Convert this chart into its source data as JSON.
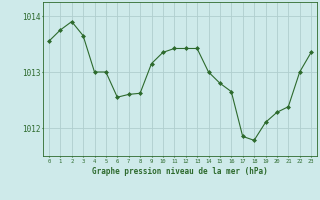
{
  "x": [
    0,
    1,
    2,
    3,
    4,
    5,
    6,
    7,
    8,
    9,
    10,
    11,
    12,
    13,
    14,
    15,
    16,
    17,
    18,
    19,
    20,
    21,
    22,
    23
  ],
  "y": [
    1013.55,
    1013.75,
    1013.9,
    1013.65,
    1013.0,
    1013.0,
    1012.55,
    1012.6,
    1012.62,
    1013.15,
    1013.35,
    1013.42,
    1013.42,
    1013.42,
    1013.0,
    1012.8,
    1012.65,
    1011.85,
    1011.78,
    1012.1,
    1012.28,
    1012.38,
    1013.0,
    1013.35
  ],
  "line_color": "#2d6a2d",
  "marker": "D",
  "marker_size": 2.0,
  "bg_color": "#ceeaea",
  "grid_color": "#b0cece",
  "xlabel": "Graphe pression niveau de la mer (hPa)",
  "xlabel_color": "#2d6a2d",
  "tick_color": "#2d6a2d",
  "ylim": [
    1011.5,
    1014.25
  ],
  "yticks": [
    1012,
    1013,
    1014
  ],
  "xlim": [
    -0.5,
    23.5
  ],
  "xticks": [
    0,
    1,
    2,
    3,
    4,
    5,
    6,
    7,
    8,
    9,
    10,
    11,
    12,
    13,
    14,
    15,
    16,
    17,
    18,
    19,
    20,
    21,
    22,
    23
  ]
}
